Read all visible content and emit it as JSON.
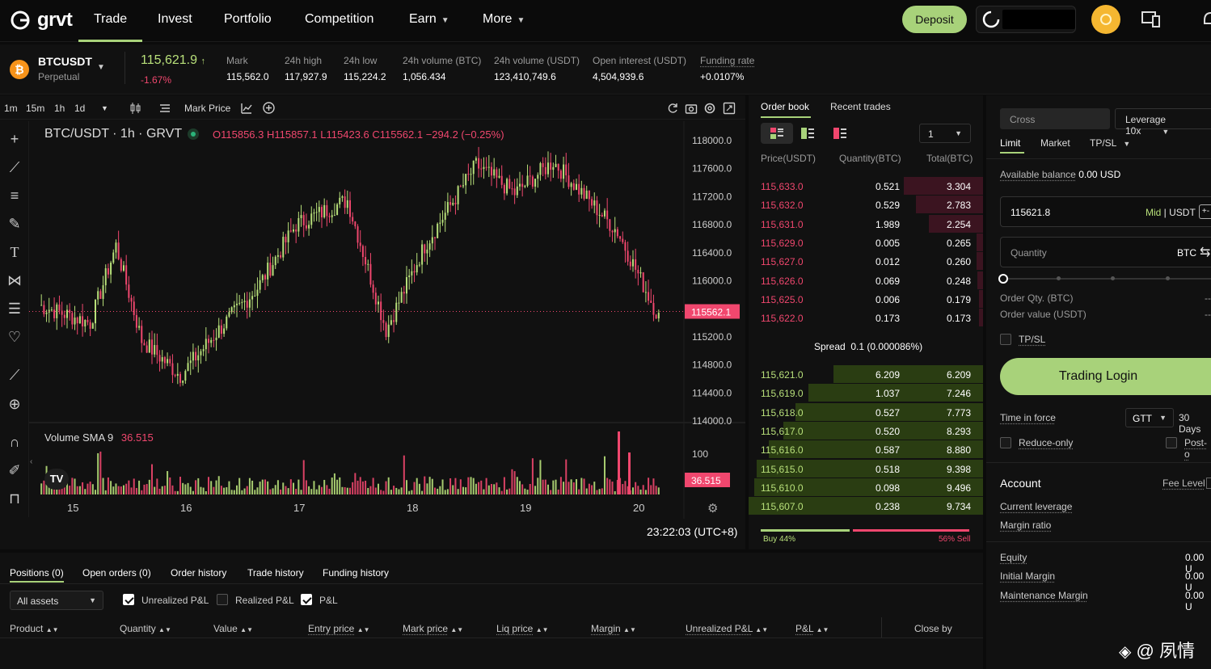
{
  "nav": {
    "brand": "grvt",
    "items": [
      "Trade",
      "Invest",
      "Portfolio",
      "Competition",
      "Earn",
      "More"
    ],
    "deposit": "Deposit"
  },
  "ticker": {
    "symbol": "BTCUSDT",
    "type": "Perpetual",
    "price": "115,621.9",
    "change": "-1.67%",
    "stats": [
      {
        "label": "Mark",
        "value": "115,562.0"
      },
      {
        "label": "24h high",
        "value": "117,927.9"
      },
      {
        "label": "24h low",
        "value": "115,224.2"
      },
      {
        "label": "24h volume (BTC)",
        "value": "1,056.434"
      },
      {
        "label": "24h volume (USDT)",
        "value": "123,410,749.6"
      },
      {
        "label": "Open interest (USDT)",
        "value": "4,504,939.6"
      },
      {
        "label": "Funding rate",
        "value": "+0.0107%"
      }
    ]
  },
  "chart": {
    "intervals": [
      "1m",
      "15m",
      "1h",
      "1d"
    ],
    "mark_price": "Mark Price",
    "title": "BTC/USDT · 1h · GRVT",
    "ohlc": {
      "o": "O115856.3",
      "h": "H115857.1",
      "l": "L115423.6",
      "c": "C115562.1",
      "chg": "−294.2 (−0.25%)"
    },
    "yticks": [
      "118000.0",
      "117600.0",
      "117200.0",
      "116800.0",
      "116400.0",
      "116000.0",
      "115200.0",
      "114800.0",
      "114400.0",
      "114000.0"
    ],
    "last_price": "115562.1",
    "volume_label": "Volume SMA 9",
    "volume_value": "36.515",
    "vol_tick": "100",
    "xticks": [
      "15",
      "16",
      "17",
      "18",
      "19",
      "20"
    ],
    "timestamp": "23:22:03 (UTC+8)"
  },
  "orderbook": {
    "tabs": [
      "Order book",
      "Recent trades"
    ],
    "depth": "1",
    "headers": [
      "Price(USDT)",
      "Quantity(BTC)",
      "Total(BTC)"
    ],
    "asks": [
      [
        "115,633.0",
        "0.521",
        "3.304"
      ],
      [
        "115,632.0",
        "0.529",
        "2.783"
      ],
      [
        "115,631.0",
        "1.989",
        "2.254"
      ],
      [
        "115,629.0",
        "0.005",
        "0.265"
      ],
      [
        "115,627.0",
        "0.012",
        "0.260"
      ],
      [
        "115,626.0",
        "0.069",
        "0.248"
      ],
      [
        "115,625.0",
        "0.006",
        "0.179"
      ],
      [
        "115,622.0",
        "0.173",
        "0.173"
      ]
    ],
    "spread_label": "Spread",
    "spread_value": "0.1 (0.000086%)",
    "bids": [
      [
        "115,621.0",
        "6.209",
        "6.209"
      ],
      [
        "115,619.0",
        "1.037",
        "7.246"
      ],
      [
        "115,618.0",
        "0.527",
        "7.773"
      ],
      [
        "115,617.0",
        "0.520",
        "8.293"
      ],
      [
        "115,616.0",
        "0.587",
        "8.880"
      ],
      [
        "115,615.0",
        "0.518",
        "9.398"
      ],
      [
        "115,610.0",
        "0.098",
        "9.496"
      ],
      [
        "115,607.0",
        "0.238",
        "9.734"
      ]
    ],
    "buy_pct": "Buy 44%",
    "sell_pct": "56% Sell",
    "buy_ratio": 0.44
  },
  "form": {
    "margin_mode": "Cross",
    "leverage": "Leverage 10x",
    "order_types": [
      "Limit",
      "Market",
      "TP/SL"
    ],
    "available_label": "Available balance",
    "available_value": "0.00 USD",
    "price_value": "115621.8",
    "price_suffix_mid": "Mid",
    "price_suffix_unit": "USDT",
    "quantity_placeholder": "Quantity",
    "quantity_unit": "BTC",
    "order_qty_label": "Order Qty. (BTC)",
    "order_qty_value": "--",
    "order_value_label": "Order value (USDT)",
    "order_value_value": "--",
    "tpsl": "TP/SL",
    "login": "Trading Login",
    "tif_label": "Time in force",
    "tif_value": "GTT",
    "tif_days": "30 Days",
    "reduce_only": "Reduce-only",
    "post_only": "Post-o",
    "account_title": "Account",
    "fee_level": "Fee Level",
    "current_leverage": "Current leverage",
    "margin_ratio": "Margin ratio",
    "equity_label": "Equity",
    "equity_value": "0.00 U",
    "initial_label": "Initial Margin",
    "initial_value": "0.00 U",
    "maint_label": "Maintenance Margin",
    "maint_value": "0.00 U"
  },
  "bottom": {
    "tabs": [
      "Positions (0)",
      "Open orders (0)",
      "Order history",
      "Trade history",
      "Funding history"
    ],
    "filter": "All assets",
    "checks": [
      {
        "label": "Unrealized P&L",
        "on": true
      },
      {
        "label": "Realized P&L",
        "on": false
      },
      {
        "label": "P&L",
        "on": true
      }
    ],
    "columns": [
      "Product",
      "Quantity",
      "Value",
      "Entry price",
      "Mark price",
      "Liq price",
      "Margin",
      "Unrealized P&L",
      "P&L",
      "Close by"
    ]
  },
  "watermark": "@ 夙情"
}
